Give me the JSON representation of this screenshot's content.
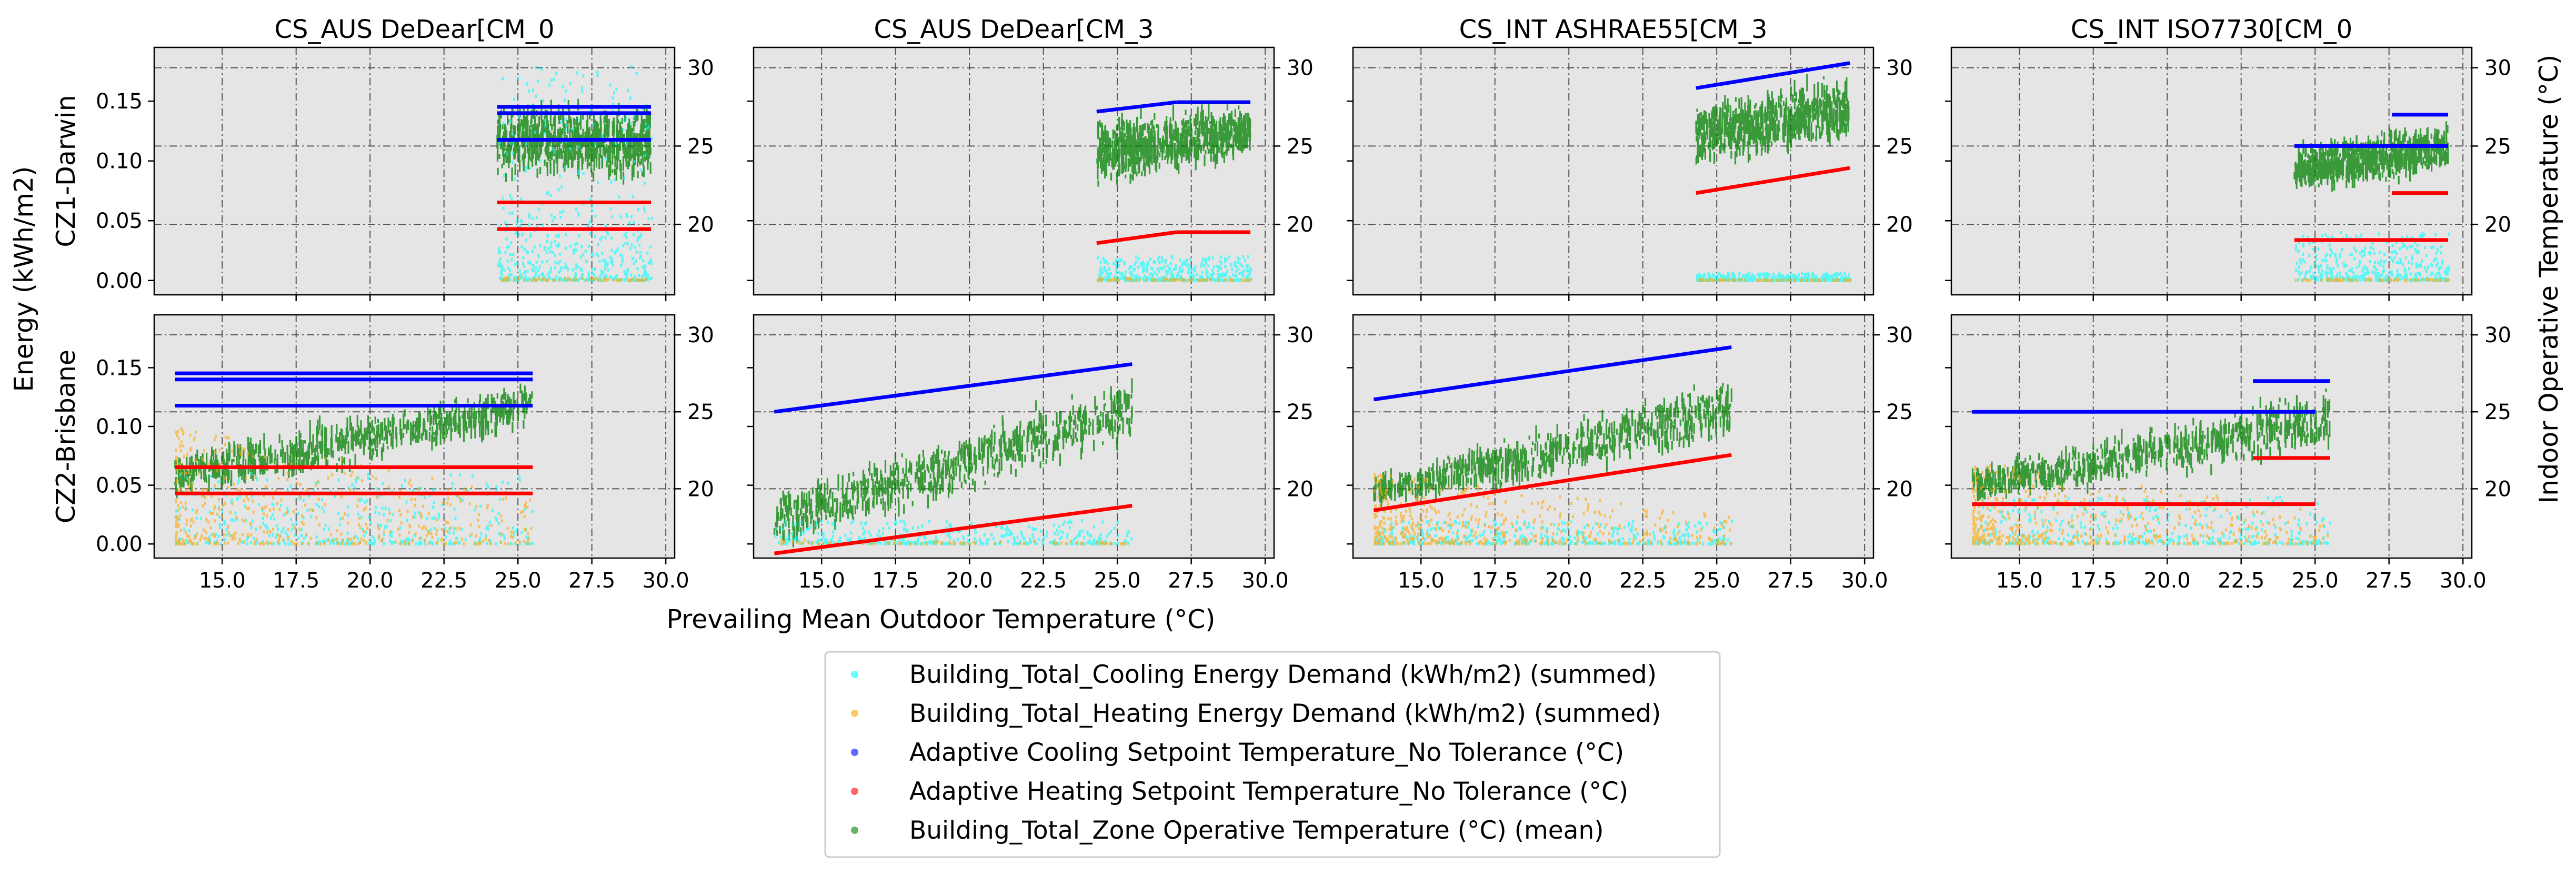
{
  "figure": {
    "xlabel": "Prevailing Mean Outdoor Temperature (°C)",
    "ylabel_left": "Energy (kWh/m2)",
    "ylabel_right": "Indoor Operative Temperature (°C)"
  },
  "columns": [
    "CS_AUS DeDear[CM_0",
    "CS_AUS DeDear[CM_3",
    "CS_INT ASHRAE55[CM_3",
    "CS_INT ISO7730[CM_0"
  ],
  "rows": [
    "CZ1-Darwin",
    "CZ2-Brisbane"
  ],
  "legend": [
    {
      "label": "Building_Total_Cooling Energy Demand (kWh/m2) (summed)",
      "color": "#00ffff"
    },
    {
      "label": "Building_Total_Heating Energy Demand (kWh/m2) (summed)",
      "color": "#ffa500"
    },
    {
      "label": "Adaptive Cooling Setpoint Temperature_No Tolerance (°C)",
      "color": "#0000ff"
    },
    {
      "label": "Adaptive Heating Setpoint Temperature_No Tolerance (°C)",
      "color": "#ff0000"
    },
    {
      "label": "Building_Total_Zone Operative Temperature (°C) (mean)",
      "color": "#008000"
    }
  ],
  "chart_data": {
    "type": "scatter",
    "x_range": [
      12.7,
      30.3
    ],
    "x_ticks": [
      "15.0",
      "17.5",
      "20.0",
      "22.5",
      "25.0",
      "27.5",
      "30.0"
    ],
    "x_tick_values": [
      15,
      17.5,
      20,
      22.5,
      25,
      27.5,
      30
    ],
    "y_energy_range": [
      -0.012,
      0.195
    ],
    "y_energy_ticks": [
      "0.00",
      "0.05",
      "0.10",
      "0.15"
    ],
    "y_energy_tick_values": [
      0,
      0.05,
      0.1,
      0.15
    ],
    "y_temp_range": [
      15.5,
      31.3
    ],
    "y_temp_ticks": [
      "20",
      "25",
      "30"
    ],
    "y_temp_tick_values": [
      20,
      25,
      30
    ],
    "grid": true,
    "legend_placement": "bottom-center",
    "panels": [
      {
        "row": 0,
        "col": 0,
        "x": [
          24.3,
          29.5
        ],
        "cooling_setpoint": [
          [
            24.3,
            27.5,
            29.5,
            27.5
          ],
          [
            24.3,
            27.1,
            29.5,
            27.1
          ],
          [
            24.3,
            25.4,
            29.5,
            25.4
          ]
        ],
        "heating_setpoint": [
          [
            24.3,
            21.4,
            29.5,
            21.4
          ],
          [
            24.3,
            19.7,
            29.5,
            19.7
          ]
        ],
        "operative_band": [
          [
            24.3,
            22.5,
            29.5,
            22.5
          ],
          [
            24.3,
            28.0,
            29.5,
            28.0
          ]
        ],
        "cooling_energy": [
          0.0,
          0.06,
          0.18
        ],
        "heating_energy": [
          0.0,
          0.003
        ]
      },
      {
        "row": 0,
        "col": 1,
        "x": [
          24.3,
          29.5
        ],
        "cooling_setpoint": [
          [
            24.3,
            27.2,
            27.0,
            27.8
          ],
          [
            27.0,
            27.8,
            29.5,
            27.8
          ]
        ],
        "heating_setpoint": [
          [
            24.3,
            18.8,
            27.0,
            19.5
          ],
          [
            27.0,
            19.5,
            29.5,
            19.5
          ]
        ],
        "operative_band": [
          [
            24.3,
            21.9,
            29.5,
            24.1
          ],
          [
            24.3,
            27.2,
            29.5,
            27.8
          ]
        ],
        "cooling_energy": [
          0.0,
          0.02
        ],
        "heating_energy": [
          0.0,
          0.002
        ]
      },
      {
        "row": 0,
        "col": 2,
        "x": [
          24.3,
          29.5
        ],
        "cooling_setpoint": [
          [
            24.3,
            28.7,
            29.5,
            30.3
          ]
        ],
        "heating_setpoint": [
          [
            24.3,
            22.0,
            29.5,
            23.6
          ]
        ],
        "operative_band": [
          [
            24.3,
            23.3,
            29.5,
            24.9
          ],
          [
            24.3,
            28.0,
            29.5,
            30.0
          ]
        ],
        "cooling_energy": [
          0.0,
          0.006
        ],
        "heating_energy": [
          0.0,
          0.001
        ]
      },
      {
        "row": 0,
        "col": 3,
        "x": [
          24.3,
          29.5
        ],
        "cooling_setpoint": [
          [
            24.3,
            25.0,
            29.5,
            25.0
          ],
          [
            27.6,
            27.0,
            29.5,
            27.0
          ]
        ],
        "heating_setpoint": [
          [
            24.3,
            19.0,
            29.5,
            19.0
          ],
          [
            27.6,
            22.0,
            29.5,
            22.0
          ]
        ],
        "operative_band": [
          [
            24.3,
            22.0,
            29.5,
            22.8
          ],
          [
            24.3,
            25.0,
            29.5,
            27.0
          ]
        ],
        "cooling_energy": [
          0.0,
          0.04
        ],
        "heating_energy": [
          0.0,
          0.002
        ]
      },
      {
        "row": 1,
        "col": 0,
        "x": [
          13.4,
          25.5
        ],
        "cooling_setpoint": [
          [
            13.4,
            27.5,
            25.5,
            27.5
          ],
          [
            13.4,
            27.1,
            25.5,
            27.1
          ],
          [
            13.4,
            25.4,
            25.5,
            25.4
          ]
        ],
        "heating_setpoint": [
          [
            13.4,
            21.4,
            25.5,
            21.4
          ],
          [
            13.4,
            19.7,
            25.5,
            19.7
          ]
        ],
        "operative_band": [
          [
            13.4,
            19.0,
            25.5,
            23.5
          ],
          [
            13.4,
            22.5,
            25.5,
            27.5
          ]
        ],
        "cooling_energy": [
          0.0,
          0.06
        ],
        "heating_energy": [
          0.0,
          0.1
        ]
      },
      {
        "row": 1,
        "col": 1,
        "x": [
          13.4,
          25.5
        ],
        "cooling_setpoint": [
          [
            13.4,
            25.0,
            25.5,
            28.1
          ]
        ],
        "heating_setpoint": [
          [
            13.4,
            15.8,
            25.5,
            18.9
          ]
        ],
        "operative_band": [
          [
            13.4,
            15.8,
            25.5,
            22.5
          ],
          [
            13.4,
            20.0,
            25.5,
            27.8
          ]
        ],
        "cooling_energy": [
          0.0,
          0.02
        ],
        "heating_energy": [
          0.0,
          0.004
        ]
      },
      {
        "row": 1,
        "col": 2,
        "x": [
          13.4,
          25.5
        ],
        "cooling_setpoint": [
          [
            13.4,
            25.8,
            25.5,
            29.2
          ]
        ],
        "heating_setpoint": [
          [
            13.4,
            18.6,
            25.5,
            22.2
          ]
        ],
        "operative_band": [
          [
            13.4,
            18.6,
            25.5,
            22.5
          ],
          [
            13.4,
            21.0,
            25.5,
            27.8
          ]
        ],
        "cooling_energy": [
          0.0,
          0.02
        ],
        "heating_energy": [
          0.0,
          0.06
        ]
      },
      {
        "row": 1,
        "col": 3,
        "x": [
          13.4,
          25.5
        ],
        "cooling_setpoint": [
          [
            13.4,
            25.0,
            25.0,
            25.0
          ],
          [
            22.9,
            27.0,
            25.5,
            27.0
          ]
        ],
        "heating_setpoint": [
          [
            13.4,
            19.0,
            25.0,
            19.0
          ],
          [
            22.9,
            22.0,
            25.5,
            22.0
          ]
        ],
        "operative_band": [
          [
            13.4,
            19.0,
            25.5,
            22.0
          ],
          [
            13.4,
            21.5,
            25.5,
            27.0
          ]
        ],
        "cooling_energy": [
          0.0,
          0.04
        ],
        "heating_energy": [
          0.0,
          0.07
        ]
      }
    ]
  }
}
